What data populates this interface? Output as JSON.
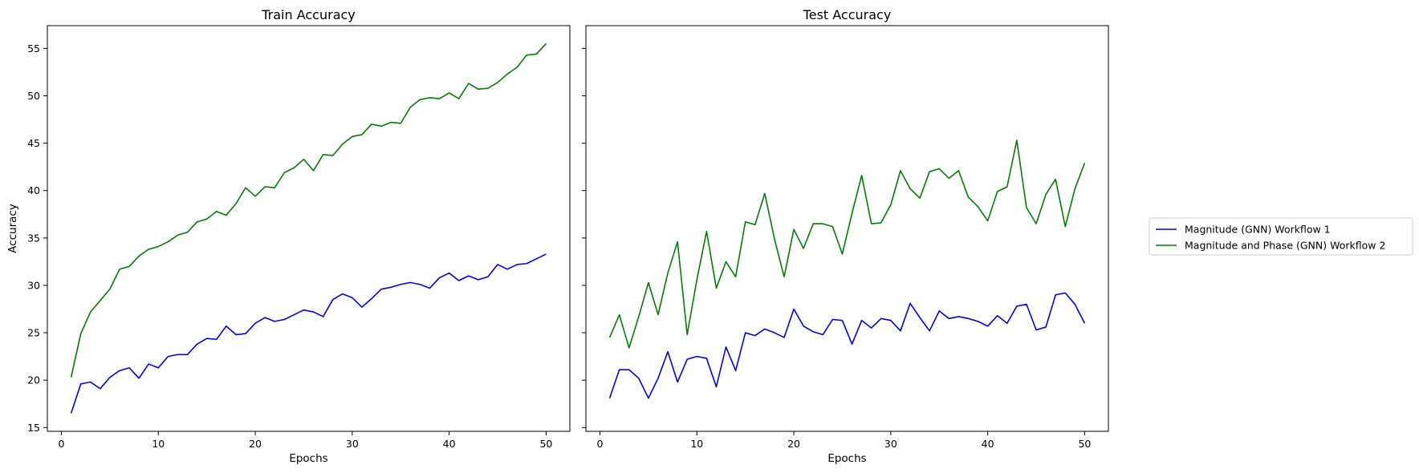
{
  "chart_data": [
    {
      "type": "line",
      "title": "Train Accuracy",
      "xlabel": "Epochs",
      "ylabel": "Accuracy",
      "xlim": [
        -1.45,
        52.45
      ],
      "ylim": [
        14.6,
        57.4
      ],
      "xticks": [
        0,
        10,
        20,
        30,
        40,
        50
      ],
      "yticks": [
        15,
        20,
        25,
        30,
        35,
        40,
        45,
        50,
        55
      ],
      "grid": false,
      "x": [
        1,
        2,
        3,
        4,
        5,
        6,
        7,
        8,
        9,
        10,
        11,
        12,
        13,
        14,
        15,
        16,
        17,
        18,
        19,
        20,
        21,
        22,
        23,
        24,
        25,
        26,
        27,
        28,
        29,
        30,
        31,
        32,
        33,
        34,
        35,
        36,
        37,
        38,
        39,
        40,
        41,
        42,
        43,
        44,
        45,
        46,
        47,
        48,
        49,
        50
      ],
      "series": [
        {
          "name": "Magnitude (GNN) Workflow 1",
          "color": "#0000ff",
          "values": [
            16.5,
            19.6,
            19.8,
            19.1,
            20.3,
            21.0,
            21.3,
            20.2,
            21.7,
            21.3,
            22.5,
            22.7,
            22.7,
            23.8,
            24.4,
            24.3,
            25.7,
            24.8,
            24.9,
            26.0,
            26.6,
            26.2,
            26.4,
            26.9,
            27.4,
            27.2,
            26.7,
            28.5,
            29.1,
            28.7,
            27.7,
            28.6,
            29.6,
            29.8,
            30.1,
            30.3,
            30.1,
            29.7,
            30.8,
            31.3,
            30.5,
            31.0,
            30.6,
            30.9,
            32.2,
            31.7,
            32.2,
            32.3,
            32.8,
            33.3
          ]
        },
        {
          "name": "Magnitude and Phase (GNN) Workflow 2",
          "color": "#008000",
          "values": [
            20.3,
            24.9,
            27.2,
            28.4,
            29.6,
            31.7,
            32.0,
            33.1,
            33.8,
            34.1,
            34.6,
            35.3,
            35.6,
            36.7,
            37.0,
            37.8,
            37.4,
            38.6,
            40.3,
            39.4,
            40.4,
            40.3,
            41.9,
            42.4,
            43.3,
            42.1,
            43.8,
            43.7,
            44.9,
            45.7,
            45.9,
            47.0,
            46.8,
            47.2,
            47.1,
            48.8,
            49.6,
            49.8,
            49.7,
            50.3,
            49.7,
            51.3,
            50.7,
            50.8,
            51.4,
            52.3,
            53.0,
            54.3,
            54.4,
            55.5
          ]
        }
      ]
    },
    {
      "type": "line",
      "title": "Test Accuracy",
      "xlabel": "Epochs",
      "xlim": [
        -1.45,
        52.45
      ],
      "xticks": [
        0,
        10,
        20,
        30,
        40,
        50
      ],
      "grid": false,
      "x": [
        1,
        2,
        3,
        4,
        5,
        6,
        7,
        8,
        9,
        10,
        11,
        12,
        13,
        14,
        15,
        16,
        17,
        18,
        19,
        20,
        21,
        22,
        23,
        24,
        25,
        26,
        27,
        28,
        29,
        30,
        31,
        32,
        33,
        34,
        35,
        36,
        37,
        38,
        39,
        40,
        41,
        42,
        43,
        44,
        45,
        46,
        47,
        48,
        49,
        50
      ],
      "series": [
        {
          "name": "Magnitude (GNN) Workflow 1",
          "color": "#0000ff",
          "values": [
            18.1,
            21.1,
            21.1,
            20.2,
            18.1,
            20.2,
            23.0,
            19.8,
            22.2,
            22.5,
            22.3,
            19.3,
            23.5,
            21.0,
            25.0,
            24.7,
            25.4,
            25.0,
            24.5,
            27.5,
            25.7,
            25.1,
            24.8,
            26.4,
            26.3,
            23.8,
            26.3,
            25.5,
            26.5,
            26.3,
            25.2,
            28.1,
            26.6,
            25.2,
            27.3,
            26.5,
            26.7,
            26.5,
            26.2,
            25.7,
            26.8,
            26.0,
            27.8,
            28.0,
            25.3,
            25.6,
            29.0,
            29.2,
            28.0,
            26.0
          ]
        },
        {
          "name": "Magnitude and Phase (GNN) Workflow 2",
          "color": "#008000",
          "values": [
            24.5,
            26.9,
            23.4,
            26.7,
            30.3,
            26.9,
            31.3,
            34.6,
            24.8,
            30.6,
            35.7,
            29.7,
            32.5,
            30.9,
            36.7,
            36.4,
            39.7,
            34.9,
            30.9,
            35.9,
            33.9,
            36.5,
            36.5,
            36.2,
            33.3,
            37.6,
            41.6,
            36.5,
            36.6,
            38.5,
            42.1,
            40.2,
            39.2,
            42.0,
            42.3,
            41.3,
            42.1,
            39.3,
            38.3,
            36.8,
            39.9,
            40.4,
            45.3,
            38.2,
            36.5,
            39.6,
            41.2,
            36.2,
            40.2,
            42.9
          ]
        }
      ]
    }
  ],
  "legend": {
    "placement": "right",
    "entries": [
      {
        "label": "Magnitude (GNN) Workflow 1",
        "color": "#0000ff"
      },
      {
        "label": "Magnitude and Phase (GNN) Workflow 2",
        "color": "#008000"
      }
    ]
  }
}
